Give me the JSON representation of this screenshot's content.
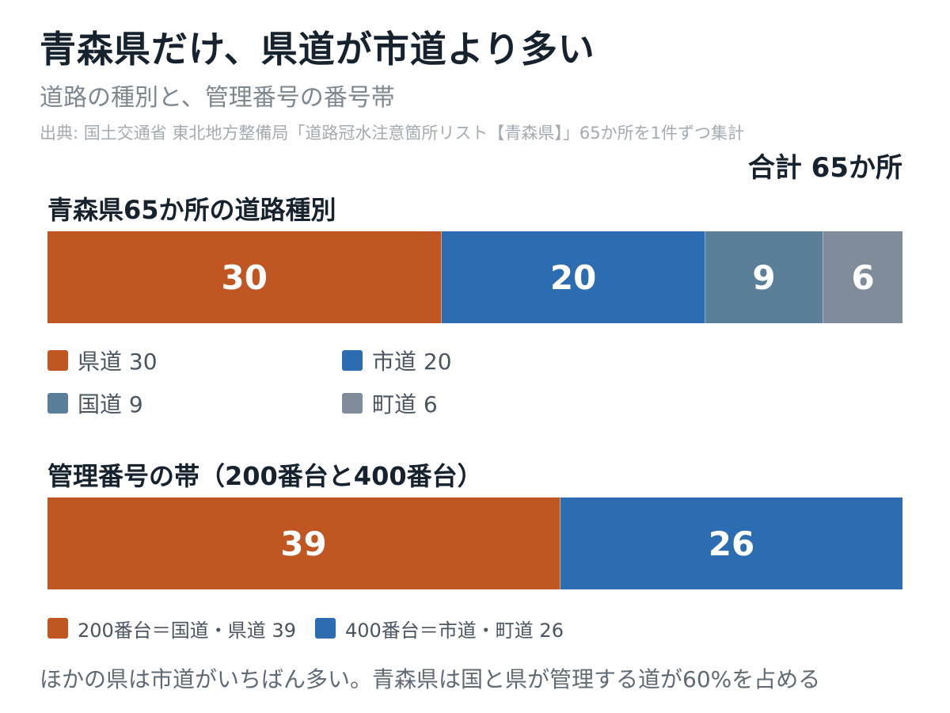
{
  "title": "青森県だけ、県道が市道より多い",
  "subtitle": "道路の種別と、管理番号の番号帯",
  "source": "出典: 国土交通省 東北地方整備局「道路冠水注意箇所リスト【青森県】」65か所を1件ずつ集計",
  "total_label": "合計 65か所",
  "footnote": "ほかの県は市道がいちばん多い。青森県は国と県が管理する道が60%を占める",
  "colors": {
    "orange": "#c05621",
    "blue": "#2c6cb0",
    "slate": "#5b7f98",
    "gray": "#808c99"
  },
  "chart_data": [
    {
      "type": "bar",
      "stacked": true,
      "orientation": "horizontal",
      "title": "青森県65か所の道路種別",
      "total": 65,
      "categories": [
        "県道",
        "市道",
        "国道",
        "町道"
      ],
      "values": [
        30,
        20,
        9,
        6
      ],
      "value_labels": [
        "30",
        "20",
        "9",
        "6"
      ],
      "legend_labels": [
        "県道 30",
        "市道 20",
        "国道 9",
        "町道 6"
      ],
      "colors": [
        "#c05621",
        "#2c6cb0",
        "#5b7f98",
        "#808c99"
      ],
      "legend": "bottom"
    },
    {
      "type": "bar",
      "stacked": true,
      "orientation": "horizontal",
      "title": "管理番号の帯（200番台と400番台）",
      "total": 65,
      "categories": [
        "200番台",
        "400番台"
      ],
      "values": [
        39,
        26
      ],
      "value_labels": [
        "39",
        "26"
      ],
      "legend_labels": [
        "200番台＝国道・県道 39",
        "400番台＝市道・町道 26"
      ],
      "colors": [
        "#c05621",
        "#2c6cb0"
      ],
      "legend": "bottom"
    }
  ]
}
